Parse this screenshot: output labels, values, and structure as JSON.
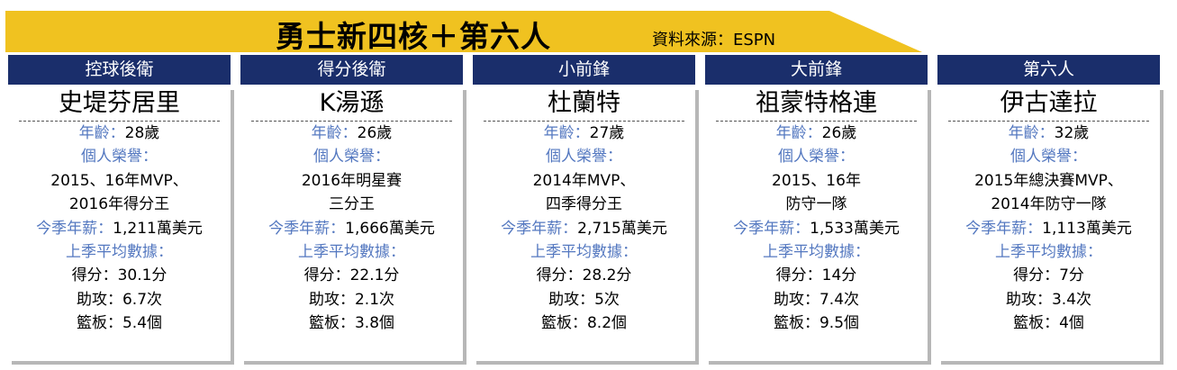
{
  "title": "勇士新四核＋第六人",
  "source": "資料來源：ESPN",
  "colors": {
    "banner": "#f0c220",
    "header": "#1a2e6b",
    "label": "#5478c0",
    "shadow": "#b7b7b7"
  },
  "labels": {
    "age": "年齡",
    "honors": "個人榮譽：",
    "salary": "今季年薪",
    "last_season": "上季平均數據：",
    "points": "得分",
    "assists": "助攻",
    "rebounds": "籃板",
    "sep": "："
  },
  "players": [
    {
      "position": "控球後衛",
      "name": "史堤芬居里",
      "age": "28歲",
      "honors": [
        "2015、16年MVP、",
        "2016年得分王"
      ],
      "salary": "1,211萬美元",
      "points": "30.1分",
      "assists": "6.7次",
      "rebounds": "5.4個"
    },
    {
      "position": "得分後衛",
      "name": "K湯遜",
      "age": "26歲",
      "honors": [
        "2016年明星賽",
        "三分王"
      ],
      "salary": "1,666萬美元",
      "points": "22.1分",
      "assists": "2.1次",
      "rebounds": "3.8個"
    },
    {
      "position": "小前鋒",
      "name": "杜蘭特",
      "age": "27歲",
      "honors": [
        "2014年MVP、",
        "四季得分王"
      ],
      "salary": "2,715萬美元",
      "points": "28.2分",
      "assists": "5次",
      "rebounds": "8.2個"
    },
    {
      "position": "大前鋒",
      "name": "祖蒙特格連",
      "age": "26歲",
      "honors": [
        "2015、16年",
        "防守一隊"
      ],
      "salary": "1,533萬美元",
      "points": "14分",
      "assists": "7.4次",
      "rebounds": "9.5個"
    },
    {
      "position": "第六人",
      "name": "伊古達拉",
      "age": "32歲",
      "honors": [
        "2015年總決賽MVP、",
        "2014年防守一隊"
      ],
      "salary": "1,113萬美元",
      "points": "7分",
      "assists": "3.4次",
      "rebounds": "4個"
    }
  ]
}
